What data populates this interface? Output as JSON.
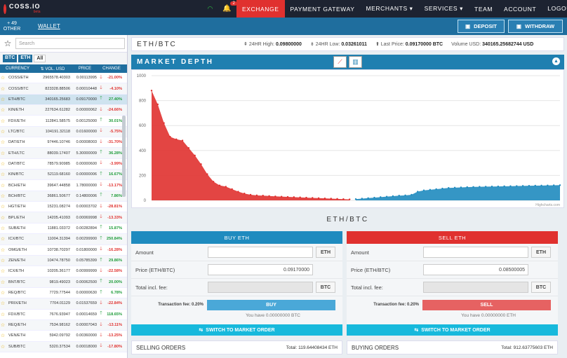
{
  "brand": {
    "name": "COSS.IO",
    "sub": "beta"
  },
  "notifications": {
    "count": "2"
  },
  "nav": [
    "EXCHANGE",
    "PAYMENT GATEWAY",
    "MERCHANTS ▾",
    "SERVICES ▾",
    "TEAM",
    "ACCOUNT",
    "LOGOUT ▾"
  ],
  "subbar": {
    "count": "+ 49",
    "other": "OTHER",
    "wallet": "WALLET",
    "deposit": "DEPOSIT",
    "withdraw": "WITHDRAW"
  },
  "sidebar": {
    "search_placeholder": "Search",
    "market_tabs": [
      "BTC",
      "ETH",
      "All"
    ],
    "columns": [
      "CURRENCY",
      "⇅ VOL. USD",
      "PRICE",
      "CHANGE"
    ],
    "rows": [
      {
        "name": "COSS/ETH",
        "vol": "2965578.40303",
        "price": "0.00113995",
        "dir": "down",
        "chg": "-21.00%"
      },
      {
        "name": "COSS/BTC",
        "vol": "823328.88506",
        "price": "0.00010448",
        "dir": "down",
        "chg": "-4.10%"
      },
      {
        "name": "ETH/BTC",
        "vol": "340165.25683",
        "price": "0.09170000",
        "dir": "up",
        "chg": "27.40%"
      },
      {
        "name": "KIN/ETH",
        "vol": "227634.61282",
        "price": "0.00000062",
        "dir": "down",
        "chg": "-24.66%"
      },
      {
        "name": "FDX/ETH",
        "vol": "112841.58575",
        "price": "0.00125000",
        "dir": "up",
        "chg": "30.01%"
      },
      {
        "name": "LTC/BTC",
        "vol": "104191.32118",
        "price": "0.01600000",
        "dir": "down",
        "chg": "-5.75%"
      },
      {
        "name": "DAT/ETH",
        "vol": "97446.10746",
        "price": "0.00008003",
        "dir": "down",
        "chg": "-31.70%"
      },
      {
        "name": "ETH/LTC",
        "vol": "88039.17407",
        "price": "5.30000009",
        "dir": "up",
        "chg": "36.28%"
      },
      {
        "name": "DAT/BTC",
        "vol": "78579.90985",
        "price": "0.00000600",
        "dir": "down",
        "chg": "-3.99%"
      },
      {
        "name": "KIN/BTC",
        "vol": "52119.68160",
        "price": "0.00000006",
        "dir": "up",
        "chg": "16.67%"
      },
      {
        "name": "BCH/ETH",
        "vol": "39647.44858",
        "price": "1.78000000",
        "dir": "down",
        "chg": "-13.17%"
      },
      {
        "name": "BCH/BTC",
        "vol": "36861.50677",
        "price": "0.14800006",
        "dir": "up",
        "chg": "7.86%"
      },
      {
        "name": "HGT/ETH",
        "vol": "15231.08274",
        "price": "0.00003702",
        "dir": "down",
        "chg": "-28.81%"
      },
      {
        "name": "BPL/ETH",
        "vol": "14205.41093",
        "price": "0.00069998",
        "dir": "down",
        "chg": "-13.33%"
      },
      {
        "name": "SUB/ETH",
        "vol": "11881.03372",
        "price": "0.00282894",
        "dir": "up",
        "chg": "15.87%"
      },
      {
        "name": "ICX/BTC",
        "vol": "11004.31394",
        "price": "0.00299900",
        "dir": "up",
        "chg": "250.84%"
      },
      {
        "name": "OMG/ETH",
        "vol": "10738.70297",
        "price": "0.01800000",
        "dir": "down",
        "chg": "-16.28%"
      },
      {
        "name": "ZEN/ETH",
        "vol": "10474.78750",
        "price": "0.05785399",
        "dir": "up",
        "chg": "29.86%"
      },
      {
        "name": "ICX/ETH",
        "vol": "10205.36177",
        "price": "0.00999999",
        "dir": "down",
        "chg": "-22.58%"
      },
      {
        "name": "BNT/BTC",
        "vol": "9819.49023",
        "price": "0.00062500",
        "dir": "up",
        "chg": "20.00%"
      },
      {
        "name": "REQ/BTC",
        "vol": "7729.77544",
        "price": "0.00000630",
        "dir": "up",
        "chg": "6.78%"
      },
      {
        "name": "PRIX/ETH",
        "vol": "7704.01129",
        "price": "0.01537659",
        "dir": "down",
        "chg": "-22.84%"
      },
      {
        "name": "FDX/BTC",
        "vol": "7676.93947",
        "price": "0.00014659",
        "dir": "up",
        "chg": "118.65%"
      },
      {
        "name": "REQ/ETH",
        "vol": "7534.98162",
        "price": "0.00007043",
        "dir": "down",
        "chg": "-13.11%"
      },
      {
        "name": "VEN/ETH",
        "vol": "5942.09792",
        "price": "0.00360000",
        "dir": "down",
        "chg": "-13.25%"
      },
      {
        "name": "SUB/BTC",
        "vol": "5320.37534",
        "price": "0.00018000",
        "dir": "down",
        "chg": "-17.80%"
      }
    ]
  },
  "pair": {
    "title": "ETH/BTC",
    "high_label": "24HR High:",
    "high": "0.09800000",
    "low_label": "24HR Low:",
    "low": "0.03261011",
    "last_label": "Last Price:",
    "last": "0.09170000 BTC",
    "vol_label": "Volume USD:",
    "vol": "340165.25682744 USD"
  },
  "depth": {
    "title": "MARKET DEPTH",
    "credit": "Highcharts.com"
  },
  "chart_data": {
    "type": "area",
    "yticks": [
      0,
      200,
      400,
      600,
      800,
      1000
    ],
    "ylim": [
      0,
      1000
    ],
    "series": [
      {
        "color": "#e0312f",
        "values": [
          880,
          770,
          620,
          510,
          490,
          480,
          420,
          360,
          290,
          210,
          150,
          120,
          110,
          90,
          70,
          55,
          45,
          40,
          38,
          35,
          32,
          30,
          28,
          26,
          24,
          22,
          20,
          18,
          16,
          14,
          12,
          10,
          8
        ]
      },
      {
        "color": "#1f8bbf",
        "values": [
          10,
          14,
          18,
          22,
          26,
          30,
          34,
          38,
          40,
          45,
          70,
          80,
          85,
          90,
          95,
          100,
          102,
          104,
          106,
          108,
          109,
          110,
          111,
          112,
          113,
          114,
          115,
          116,
          117,
          118,
          119,
          120,
          121,
          122
        ]
      }
    ]
  },
  "trade": {
    "title": "ETH/BTC",
    "buy": {
      "head": "BUY ETH",
      "amount": "Amount",
      "price_lbl": "Price (ETH/BTC)",
      "price": "0.09170000",
      "total": "Total incl. fee:",
      "unit1": "ETH",
      "unit2": "BTC",
      "fee_lbl": "Transaction fee: 0.20%",
      "btn": "BUY",
      "have": "You have 0.00000000 BTC",
      "switch": "SWITCH TO MARKET ORDER"
    },
    "sell": {
      "head": "SELL ETH",
      "amount": "Amount",
      "price_lbl": "Price (ETH/BTC)",
      "price": "0.08500005",
      "total": "Total incl. fee:",
      "unit1": "ETH",
      "unit2": "BTC",
      "fee_lbl": "Transaction fee: 0.20%",
      "btn": "SELL",
      "have": "You have 0.00000000 ETH",
      "switch": "SWITCH TO MARKET ORDER"
    }
  },
  "orders": {
    "selling": "SELLING ORDERS",
    "selling_total": "Total: 119.64408434 ETH",
    "buying": "BUYING ORDERS",
    "buying_total": "Total: 912.63775603 ETH"
  }
}
